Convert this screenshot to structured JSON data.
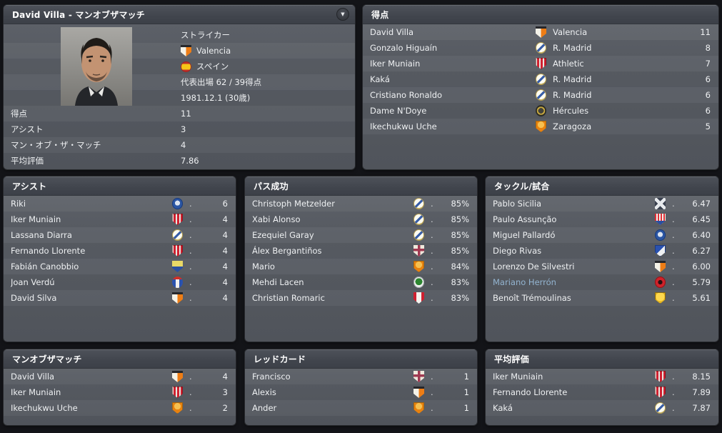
{
  "separator_dot": ".",
  "profile_panel": {
    "title": "David Villa - マンオブザマッチ",
    "dropdown_icon": "▼",
    "position": "ストライカー",
    "club": "Valencia",
    "club_key": "valencia",
    "nation": "スペイン",
    "caps_goals": "代表出場 62 / 39得点",
    "birth": "1981.12.1 (30歳)",
    "stats": [
      {
        "label": "得点",
        "value": "11"
      },
      {
        "label": "アシスト",
        "value": "3"
      },
      {
        "label": "マン・オブ・ザ・マッチ",
        "value": "4"
      },
      {
        "label": "平均評価",
        "value": "7.86"
      }
    ]
  },
  "goals_panel": {
    "title": "得点",
    "rows": [
      {
        "name": "David Villa",
        "club": "Valencia",
        "club_key": "valencia",
        "value": "11"
      },
      {
        "name": "Gonzalo Higuaín",
        "club": "R. Madrid",
        "club_key": "rmadrid",
        "value": "8"
      },
      {
        "name": "Iker Muniain",
        "club": "Athletic",
        "club_key": "athletic",
        "value": "7"
      },
      {
        "name": "Kaká",
        "club": "R. Madrid",
        "club_key": "rmadrid",
        "value": "6"
      },
      {
        "name": "Cristiano Ronaldo",
        "club": "R. Madrid",
        "club_key": "rmadrid",
        "value": "6"
      },
      {
        "name": "Dame N'Doye",
        "club": "Hércules",
        "club_key": "hercules",
        "value": "6"
      },
      {
        "name": "Ikechukwu Uche",
        "club": "Zaragoza",
        "club_key": "zaragoza",
        "value": "5"
      }
    ]
  },
  "assists_panel": {
    "title": "アシスト",
    "rows": [
      {
        "name": "Riki",
        "club_key": "getafe",
        "value": "6"
      },
      {
        "name": "Iker Muniain",
        "club_key": "athletic",
        "value": "4"
      },
      {
        "name": "Lassana Diarra",
        "club_key": "rmadrid",
        "value": "4"
      },
      {
        "name": "Fernando Llorente",
        "club_key": "athletic",
        "value": "4"
      },
      {
        "name": "Fabián Canobbio",
        "club_key": "cadiz",
        "value": "4"
      },
      {
        "name": "Joan Verdú",
        "club_key": "espanyol",
        "value": "4"
      },
      {
        "name": "David Silva",
        "club_key": "valencia",
        "value": "4"
      }
    ]
  },
  "pass_panel": {
    "title": "パス成功",
    "rows": [
      {
        "name": "Christoph Metzelder",
        "club_key": "rmadrid",
        "value": "85%"
      },
      {
        "name": "Xabi Alonso",
        "club_key": "rmadrid",
        "value": "85%"
      },
      {
        "name": "Ezequiel Garay",
        "club_key": "rmadrid",
        "value": "85%"
      },
      {
        "name": "Álex Bergantiños",
        "club_key": "deportivo",
        "value": "85%"
      },
      {
        "name": "Mario",
        "club_key": "zaragoza",
        "value": "84%"
      },
      {
        "name": "Mehdi Lacen",
        "club_key": "racing",
        "value": "83%"
      },
      {
        "name": "Christian Romaric",
        "club_key": "sevilla",
        "value": "83%"
      }
    ]
  },
  "tackles_panel": {
    "title": "タックル/試合",
    "rows": [
      {
        "name": "Pablo Sicilia",
        "club_key": "tenerife",
        "value": "6.47"
      },
      {
        "name": "Paulo Assunção",
        "club_key": "atletico",
        "value": "6.45"
      },
      {
        "name": "Miguel Pallardó",
        "club_key": "getafe",
        "value": "6.40"
      },
      {
        "name": "Diego Rivas",
        "club_key": "realsociedad",
        "value": "6.27"
      },
      {
        "name": "Lorenzo De Silvestri",
        "club_key": "valencia",
        "value": "6.00"
      },
      {
        "name": "Mariano Herrón",
        "club_key": "mallorca",
        "value": "5.79",
        "highlight": true
      },
      {
        "name": "Benoît Trémoulinas",
        "club_key": "villarreal",
        "value": "5.61"
      }
    ]
  },
  "motm_panel": {
    "title": "マンオブザマッチ",
    "rows": [
      {
        "name": "David Villa",
        "club_key": "valencia",
        "value": "4"
      },
      {
        "name": "Iker Muniain",
        "club_key": "athletic",
        "value": "3"
      },
      {
        "name": "Ikechukwu Uche",
        "club_key": "zaragoza",
        "value": "2"
      }
    ]
  },
  "redcards_panel": {
    "title": "レッドカード",
    "rows": [
      {
        "name": "Francisco",
        "club_key": "deportivo",
        "value": "1"
      },
      {
        "name": "Alexis",
        "club_key": "valencia",
        "value": "1"
      },
      {
        "name": "Ander",
        "club_key": "zaragoza",
        "value": "1"
      }
    ]
  },
  "rating_panel": {
    "title": "平均評価",
    "rows": [
      {
        "name": "Iker Muniain",
        "club_key": "athletic",
        "value": "8.15"
      },
      {
        "name": "Fernando Llorente",
        "club_key": "athletic",
        "value": "7.89"
      },
      {
        "name": "Kaká",
        "club_key": "rmadrid",
        "value": "7.87"
      }
    ]
  }
}
